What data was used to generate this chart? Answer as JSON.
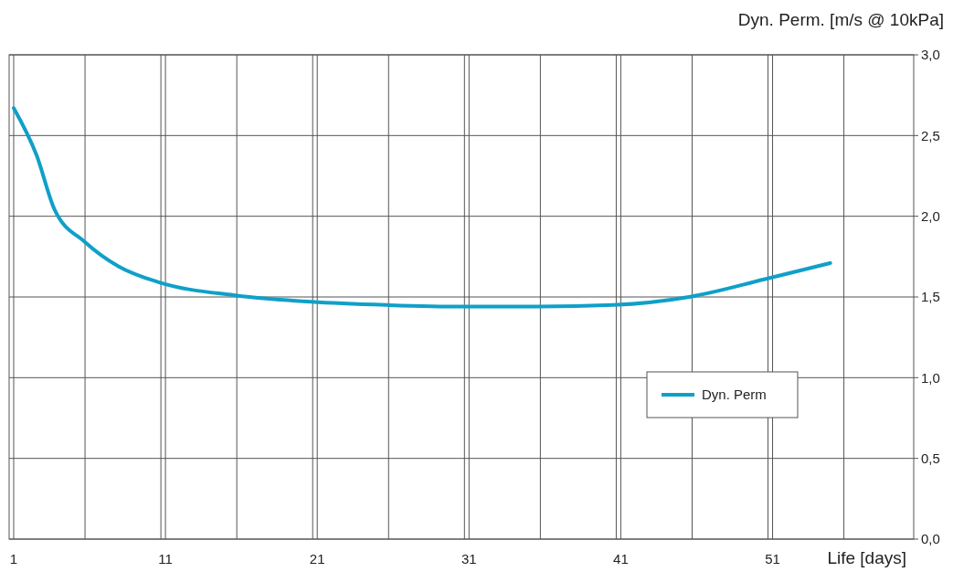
{
  "chart_data": {
    "type": "line",
    "xlabel": "Life [days]",
    "ylabel": "Dyn. Perm. [m/s @ 10kPa]",
    "xlim": [
      0.7,
      60.3
    ],
    "xticks": [
      1,
      {
        "value": 5.7,
        "label": null
      },
      11,
      {
        "value": 10.7,
        "label": null
      },
      {
        "value": 15.7,
        "label": null
      },
      21,
      {
        "value": 20.7,
        "label": null
      },
      {
        "value": 25.7,
        "label": null
      },
      31,
      {
        "value": 30.7,
        "label": null
      },
      {
        "value": 35.7,
        "label": null
      },
      41,
      {
        "value": 40.7,
        "label": null
      },
      {
        "value": 45.7,
        "label": null
      },
      51,
      {
        "value": 50.7,
        "label": null
      },
      {
        "value": 55.7,
        "label": null
      }
    ],
    "ylim": [
      0,
      3
    ],
    "yticks": [
      {
        "value": 0,
        "label": "0,0"
      },
      {
        "value": 0.5,
        "label": "0,5"
      },
      {
        "value": 1,
        "label": "1,0"
      },
      {
        "value": 1.5,
        "label": "1,5"
      },
      {
        "value": 2,
        "label": "2,0"
      },
      {
        "value": 2.5,
        "label": "2,5"
      },
      {
        "value": 3,
        "label": "3,0"
      }
    ],
    "grid": true,
    "legend": "right",
    "line_style": "solid",
    "marker": "none",
    "series": [
      {
        "name": "Dyn. Perm",
        "color": "#0fa0c8",
        "x": [
          1,
          2.5,
          3.7,
          5.7,
          7.9,
          10.6,
          15.6,
          20.6,
          25.6,
          30.5,
          35.5,
          40.5,
          45.5,
          50.5,
          54.8
        ],
        "values": [
          2.67,
          2.38,
          2.04,
          1.84,
          1.69,
          1.59,
          1.51,
          1.47,
          1.45,
          1.44,
          1.44,
          1.45,
          1.5,
          1.61,
          1.71
        ]
      }
    ]
  }
}
